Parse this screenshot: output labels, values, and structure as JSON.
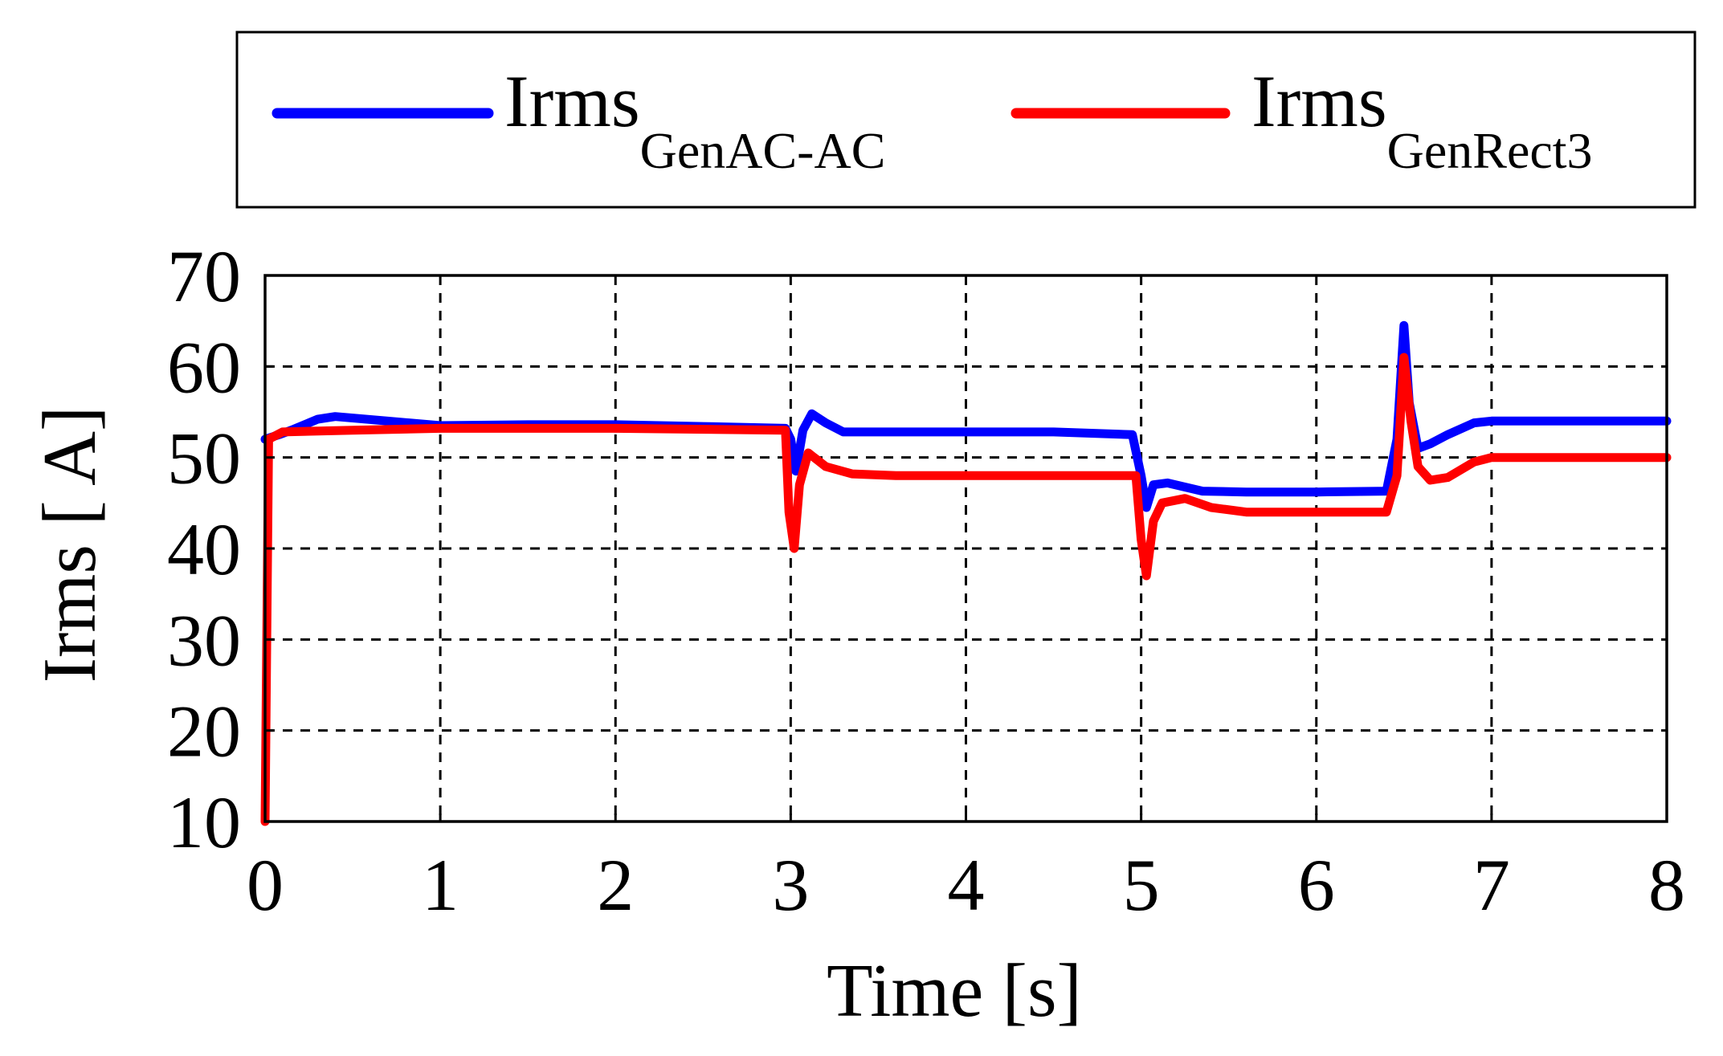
{
  "chart_data": {
    "type": "line",
    "xlabel": "Time [s]",
    "ylabel": "Irms [ A]",
    "xlim": [
      0,
      8
    ],
    "ylim": [
      10,
      70
    ],
    "xticks": [
      "0",
      "1",
      "2",
      "3",
      "4",
      "5",
      "6",
      "7",
      "8"
    ],
    "yticks": [
      "10",
      "20",
      "30",
      "40",
      "50",
      "60",
      "70"
    ],
    "grid": true,
    "legend_position": "top",
    "series": [
      {
        "name": "Irms",
        "subscript": "GenAC-AC",
        "color": "#0000ff",
        "x": [
          0,
          0.08,
          0.15,
          0.3,
          0.4,
          0.7,
          1.0,
          1.5,
          2.0,
          2.5,
          2.97,
          3.0,
          3.03,
          3.07,
          3.12,
          3.2,
          3.3,
          3.5,
          4.0,
          4.5,
          4.95,
          5.0,
          5.03,
          5.07,
          5.15,
          5.35,
          5.6,
          6.0,
          6.4,
          6.46,
          6.5,
          6.53,
          6.58,
          6.65,
          6.75,
          6.9,
          7.0,
          7.5,
          8.0
        ],
        "y": [
          52,
          52.5,
          53,
          54.2,
          54.5,
          54,
          53.5,
          53.6,
          53.6,
          53.4,
          53.2,
          52,
          48.5,
          53,
          54.8,
          53.8,
          52.8,
          52.8,
          52.8,
          52.8,
          52.5,
          48,
          44.5,
          47,
          47.2,
          46.3,
          46.2,
          46.2,
          46.3,
          52,
          64.5,
          56,
          51,
          51.5,
          52.5,
          53.8,
          54,
          54,
          54
        ]
      },
      {
        "name": "Irms",
        "subscript": "GenRect3",
        "color": "#ff0000",
        "x": [
          0,
          0.02,
          0.1,
          0.5,
          1.0,
          2.0,
          2.97,
          2.99,
          3.02,
          3.05,
          3.1,
          3.2,
          3.35,
          3.6,
          4.0,
          4.5,
          4.97,
          5.0,
          5.03,
          5.07,
          5.12,
          5.25,
          5.4,
          5.6,
          6.0,
          6.4,
          6.46,
          6.5,
          6.54,
          6.58,
          6.65,
          6.75,
          6.9,
          7.0,
          7.5,
          8.0
        ],
        "y": [
          10,
          52,
          52.8,
          53,
          53.2,
          53.2,
          53,
          44,
          40,
          47,
          50.5,
          49,
          48.2,
          48,
          48,
          48,
          48,
          41,
          37,
          43,
          45,
          45.5,
          44.5,
          44,
          44,
          44,
          48,
          61,
          54,
          49,
          47.5,
          47.8,
          49.5,
          50,
          50,
          50
        ]
      }
    ]
  }
}
